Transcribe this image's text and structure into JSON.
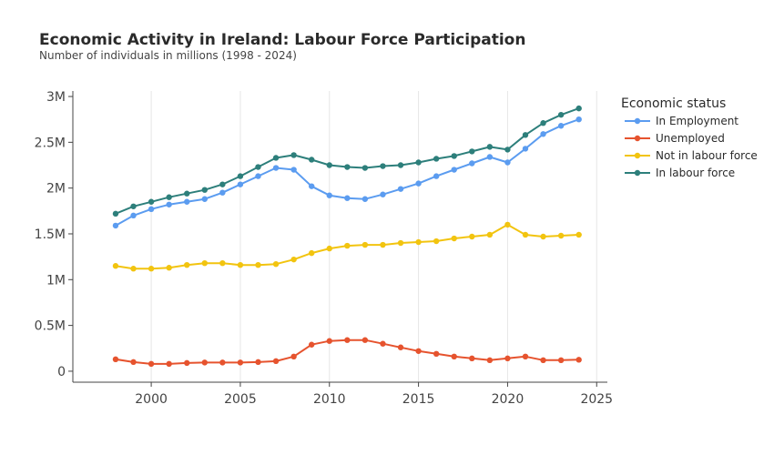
{
  "chart_data": {
    "type": "line",
    "title": "Economic Activity in Ireland: Labour Force Participation",
    "subtitle": "Number of individuals in millions (1998 - 2024)",
    "xlabel": "",
    "ylabel": "",
    "xlim": [
      1995.6,
      2025.6
    ],
    "ylim": [
      -0.12,
      3.06
    ],
    "x_ticks": [
      2000,
      2005,
      2010,
      2015,
      2020,
      2025
    ],
    "y_ticks": [
      0,
      0.5,
      1,
      1.5,
      2,
      2.5,
      3
    ],
    "y_tick_labels": [
      "0",
      "0.5M",
      "1M",
      "1.5M",
      "2M",
      "2.5M",
      "3M"
    ],
    "grid": "vertical",
    "legend_title": "Economic status",
    "legend_position": "right",
    "x": [
      1998,
      1999,
      2000,
      2001,
      2002,
      2003,
      2004,
      2005,
      2006,
      2007,
      2008,
      2009,
      2010,
      2011,
      2012,
      2013,
      2014,
      2015,
      2016,
      2017,
      2018,
      2019,
      2020,
      2021,
      2022,
      2023,
      2024
    ],
    "series": [
      {
        "name": "In Employment",
        "color": "#5b9cf0",
        "values": [
          1.59,
          1.7,
          1.77,
          1.82,
          1.85,
          1.88,
          1.95,
          2.04,
          2.13,
          2.22,
          2.2,
          2.02,
          1.92,
          1.89,
          1.88,
          1.93,
          1.99,
          2.05,
          2.13,
          2.2,
          2.27,
          2.34,
          2.28,
          2.43,
          2.59,
          2.68,
          2.75
        ]
      },
      {
        "name": "Unemployed",
        "color": "#e6532e",
        "values": [
          0.13,
          0.1,
          0.08,
          0.08,
          0.09,
          0.095,
          0.095,
          0.095,
          0.1,
          0.11,
          0.16,
          0.29,
          0.33,
          0.34,
          0.34,
          0.3,
          0.26,
          0.22,
          0.19,
          0.16,
          0.14,
          0.12,
          0.14,
          0.16,
          0.12,
          0.12,
          0.125
        ]
      },
      {
        "name": "Not in labour force",
        "color": "#f2c40f",
        "values": [
          1.15,
          1.12,
          1.12,
          1.13,
          1.16,
          1.18,
          1.18,
          1.16,
          1.16,
          1.17,
          1.22,
          1.29,
          1.34,
          1.37,
          1.38,
          1.38,
          1.4,
          1.41,
          1.42,
          1.45,
          1.47,
          1.49,
          1.6,
          1.49,
          1.47,
          1.48,
          1.49
        ]
      },
      {
        "name": "In labour force",
        "color": "#2d7f7b",
        "values": [
          1.72,
          1.8,
          1.85,
          1.9,
          1.94,
          1.98,
          2.04,
          2.13,
          2.23,
          2.33,
          2.36,
          2.31,
          2.25,
          2.23,
          2.22,
          2.24,
          2.25,
          2.28,
          2.32,
          2.35,
          2.4,
          2.45,
          2.42,
          2.58,
          2.71,
          2.8,
          2.87
        ]
      }
    ]
  }
}
